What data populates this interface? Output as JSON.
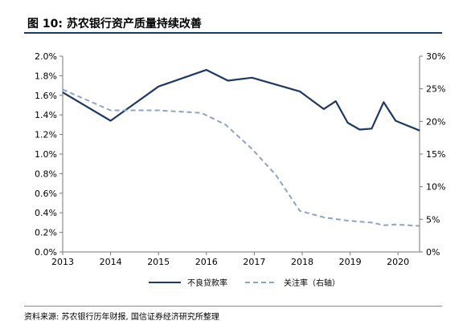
{
  "figure": {
    "title": "图 10: 苏农银行资产质量持续改善",
    "source": "资料来源: 苏农银行历年财报, 国信证券经济研究所整理"
  },
  "chart_data": {
    "type": "line",
    "x_ticks": [
      "2013",
      "2014",
      "2015",
      "2016",
      "2017",
      "2018",
      "2019",
      "2020"
    ],
    "xlim": [
      2013,
      2020.45
    ],
    "y_left": {
      "ylim": [
        0,
        2.0
      ],
      "ticks": [
        "0.0%",
        "0.2%",
        "0.4%",
        "0.6%",
        "0.8%",
        "1.0%",
        "1.2%",
        "1.4%",
        "1.6%",
        "1.8%",
        "2.0%"
      ]
    },
    "y_right": {
      "ylim": [
        0,
        30
      ],
      "ticks": [
        "0%",
        "5%",
        "10%",
        "15%",
        "20%",
        "25%",
        "30%"
      ]
    },
    "legend_position": "bottom",
    "series": [
      {
        "name": "不良贷款率",
        "axis": "left",
        "style": "solid",
        "color": "#1f3864",
        "points": [
          [
            2013.0,
            1.63
          ],
          [
            2014.0,
            1.34
          ],
          [
            2015.0,
            1.69
          ],
          [
            2016.0,
            1.86
          ],
          [
            2016.45,
            1.75
          ],
          [
            2016.95,
            1.78
          ],
          [
            2017.95,
            1.64
          ],
          [
            2018.45,
            1.46
          ],
          [
            2018.7,
            1.54
          ],
          [
            2018.95,
            1.32
          ],
          [
            2019.2,
            1.25
          ],
          [
            2019.45,
            1.26
          ],
          [
            2019.7,
            1.53
          ],
          [
            2019.95,
            1.34
          ],
          [
            2020.45,
            1.24
          ]
        ]
      },
      {
        "name": "关注率（右轴）",
        "axis": "right",
        "style": "dashed",
        "color": "#8fa3c8",
        "points": [
          [
            2013.0,
            24.9
          ],
          [
            2014.0,
            21.7
          ],
          [
            2015.0,
            21.7
          ],
          [
            2015.9,
            21.3
          ],
          [
            2016.4,
            19.5
          ],
          [
            2016.95,
            15.8
          ],
          [
            2017.45,
            11.8
          ],
          [
            2017.95,
            6.3
          ],
          [
            2018.45,
            5.3
          ],
          [
            2018.95,
            4.8
          ],
          [
            2019.45,
            4.5
          ],
          [
            2019.7,
            4.1
          ],
          [
            2019.95,
            4.2
          ],
          [
            2020.45,
            4.0
          ]
        ]
      }
    ]
  }
}
